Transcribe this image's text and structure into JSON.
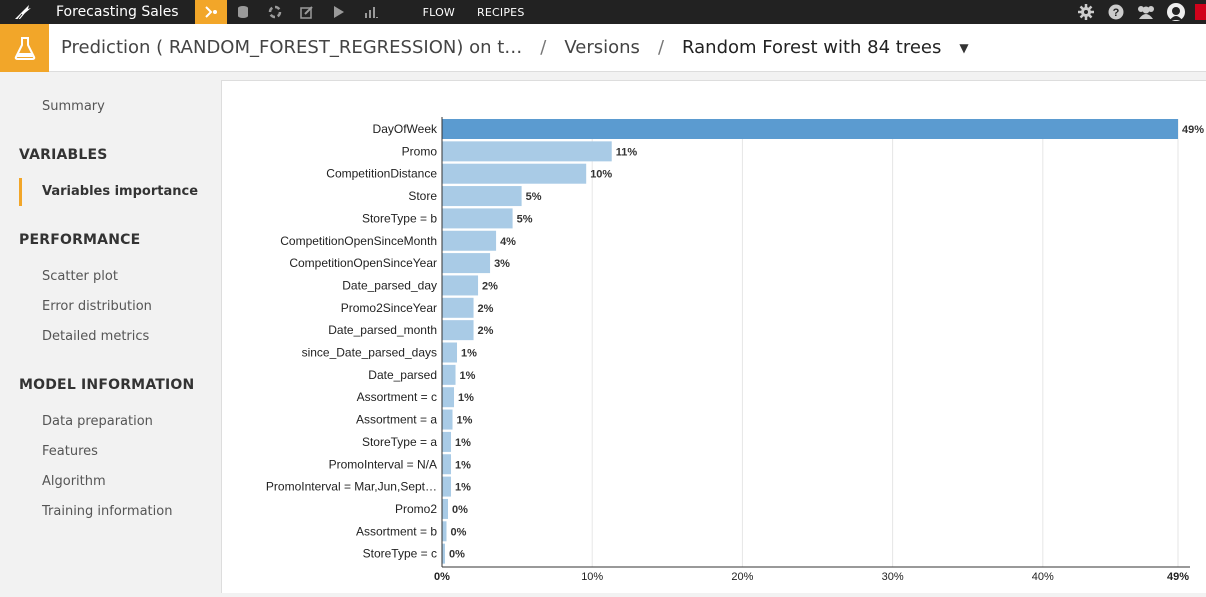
{
  "topbar": {
    "project_name": "Forecasting Sales",
    "nav": [
      "FLOW",
      "RECIPES"
    ],
    "colors": {
      "accent": "#f2a629",
      "bar_top": "#5b9bd0",
      "bar": "#a9cbe6"
    }
  },
  "header": {
    "breadcrumb_model": "Prediction ( RANDOM_FOREST_REGRESSION) on t…",
    "breadcrumb_versions": "Versions",
    "breadcrumb_current": "Random Forest with 84 trees"
  },
  "sidebar": {
    "summary": "Summary",
    "sections": [
      {
        "title": "VARIABLES",
        "items": [
          "Variables importance"
        ]
      },
      {
        "title": "PERFORMANCE",
        "items": [
          "Scatter plot",
          "Error distribution",
          "Detailed metrics"
        ]
      },
      {
        "title": "MODEL INFORMATION",
        "items": [
          "Data preparation",
          "Features",
          "Algorithm",
          "Training information"
        ]
      }
    ],
    "active_item": "Variables importance"
  },
  "chart_data": {
    "type": "bar",
    "orientation": "horizontal",
    "categories": [
      "DayOfWeek",
      "Promo",
      "CompetitionDistance",
      "Store",
      "StoreType = b",
      "CompetitionOpenSinceMonth",
      "CompetitionOpenSinceYear",
      "Date_parsed_day",
      "Promo2SinceYear",
      "Date_parsed_month",
      "since_Date_parsed_days",
      "Date_parsed",
      "Assortment = c",
      "Assortment = a",
      "StoreType = a",
      "PromoInterval = N/A",
      "PromoInterval = Mar,Jun,Sept…",
      "Promo2",
      "Assortment = b",
      "StoreType = c"
    ],
    "values": [
      49,
      11.3,
      9.6,
      5.3,
      4.7,
      3.6,
      3.2,
      2.4,
      2.1,
      2.1,
      1.0,
      0.9,
      0.8,
      0.7,
      0.6,
      0.6,
      0.6,
      0.4,
      0.3,
      0.2
    ],
    "value_labels": [
      "49%",
      "11%",
      "10%",
      "5%",
      "5%",
      "4%",
      "3%",
      "2%",
      "2%",
      "2%",
      "1%",
      "1%",
      "1%",
      "1%",
      "1%",
      "1%",
      "1%",
      "0%",
      "0%",
      "0%"
    ],
    "x_ticks": [
      "0%",
      "10%",
      "20%",
      "30%",
      "40%",
      "49%"
    ],
    "xlim": [
      0,
      49
    ],
    "grid": true
  }
}
